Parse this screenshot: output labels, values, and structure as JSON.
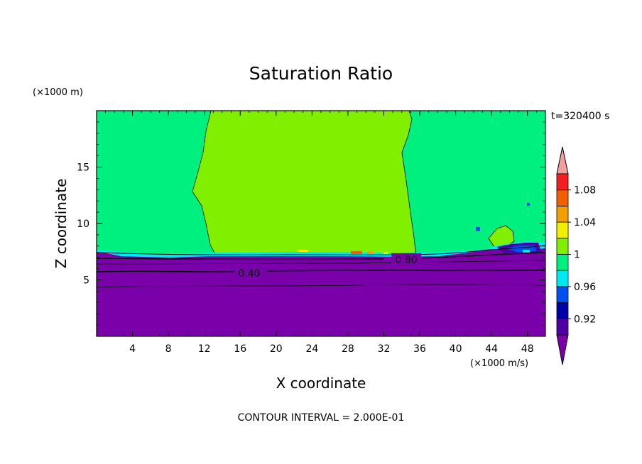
{
  "chart_data": {
    "type": "heatmap",
    "title": "Saturation Ratio",
    "xlabel": "X coordinate",
    "ylabel": "Z coordinate",
    "x_units": "(×1000 m/s)",
    "y_units": "(×1000 m)",
    "time_label": "t=320400 s",
    "contour_interval_label": "CONTOUR INTERVAL = 2.000E-01",
    "xlim": [
      0,
      50
    ],
    "ylim": [
      0,
      20
    ],
    "x_ticks": [
      4,
      8,
      12,
      16,
      20,
      24,
      28,
      32,
      36,
      40,
      44,
      48
    ],
    "y_ticks": [
      5,
      10,
      15
    ],
    "contour_labels": [
      {
        "text": "0.40",
        "x": 17.0,
        "y": 5.6
      },
      {
        "text": "0.80",
        "x": 34.5,
        "y": 6.8
      }
    ],
    "colorbar": {
      "levels": [
        0.9,
        0.92,
        0.94,
        0.96,
        0.98,
        1.0,
        1.02,
        1.04,
        1.06,
        1.08,
        1.1
      ],
      "tick_labels": [
        "0.92",
        "0.96",
        "1",
        "1.04",
        "1.08"
      ],
      "tick_values": [
        0.92,
        0.96,
        1.0,
        1.04,
        1.08
      ],
      "under_color": "#7a00aa",
      "over_color": "#f0a0a0",
      "colors": [
        "#5000a0",
        "#0000a8",
        "#0050f0",
        "#00e8f0",
        "#00f080",
        "#80f000",
        "#f0f000",
        "#f0a000",
        "#f06000",
        "#f02020"
      ]
    },
    "regions": {
      "dry_lower_color": "#7a00aa",
      "upper_color": "#00f080",
      "central_column_color": "#80f000",
      "cloud_base_z": 7.2,
      "central_column_x": [
        11,
        36
      ]
    }
  }
}
